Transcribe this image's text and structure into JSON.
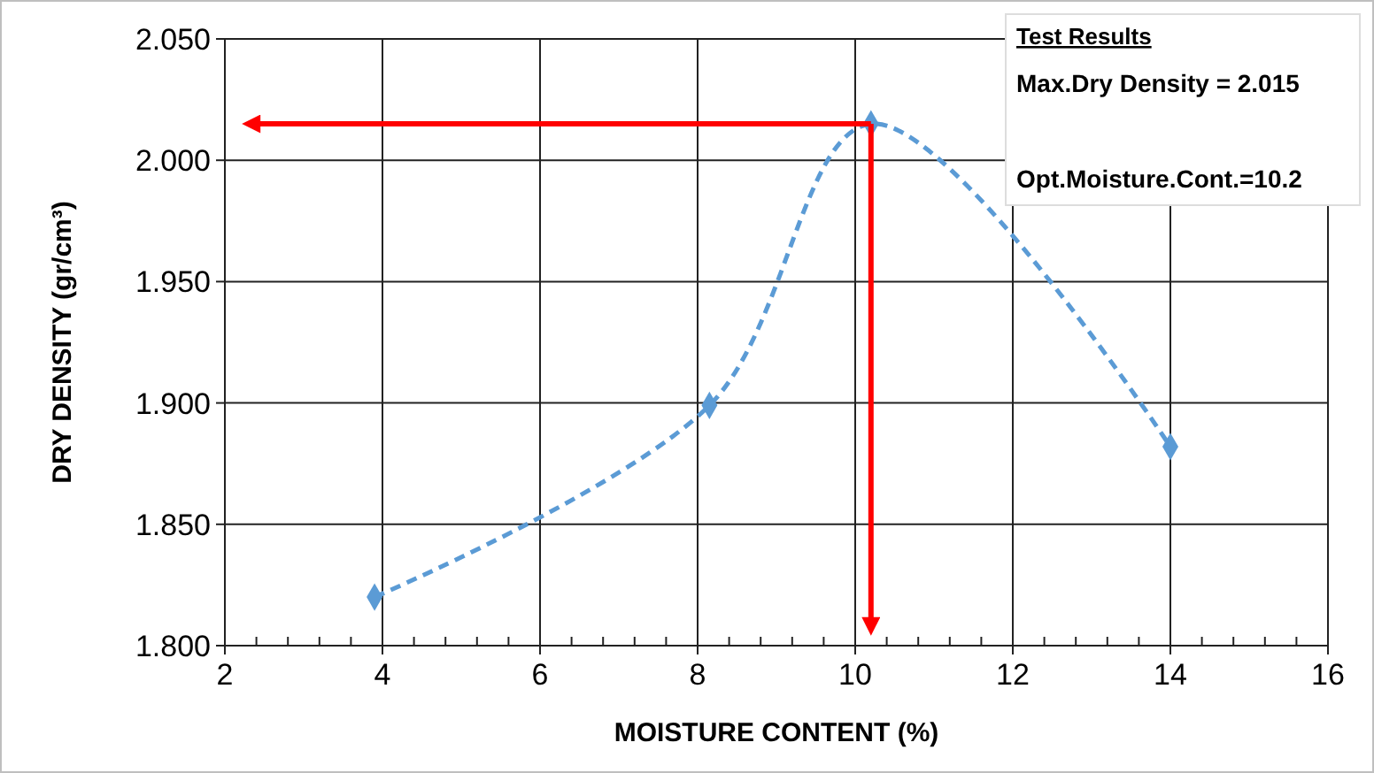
{
  "chart_data": {
    "type": "line",
    "xlabel": "MOISTURE CONTENT (%)",
    "ylabel": "DRY DENSITY (gr/cm³)",
    "x": [
      3.9,
      8.15,
      10.2,
      14
    ],
    "series": [
      {
        "color": "#5b9bd5",
        "values": [
          1.82,
          1.899,
          2.015,
          1.882
        ]
      }
    ],
    "xlim": [
      2,
      16
    ],
    "xticks": [
      2,
      4,
      6,
      8,
      10,
      12,
      14,
      16
    ],
    "ylim": [
      1.8,
      2.05
    ],
    "yticks": [
      {
        "value": 1.8,
        "label": "1.800"
      },
      {
        "value": 1.85,
        "label": "1.850"
      },
      {
        "value": 1.9,
        "label": "1.900"
      },
      {
        "value": 1.95,
        "label": "1.950"
      },
      {
        "value": 2.0,
        "label": "2.000"
      },
      {
        "value": 2.05,
        "label": "2.050"
      }
    ],
    "grid": true,
    "marker": "diamond",
    "line_style": "dashed",
    "ref_lines": [
      {
        "axis": "y",
        "value": 2.015,
        "color": "#ff0000"
      },
      {
        "axis": "x",
        "value": 10.2,
        "color": "#ff0000"
      }
    ],
    "annotations": [
      "Test Results",
      "Max.Dry Density = 2.015",
      "Opt.Moisture.Cont.=10.2"
    ]
  }
}
